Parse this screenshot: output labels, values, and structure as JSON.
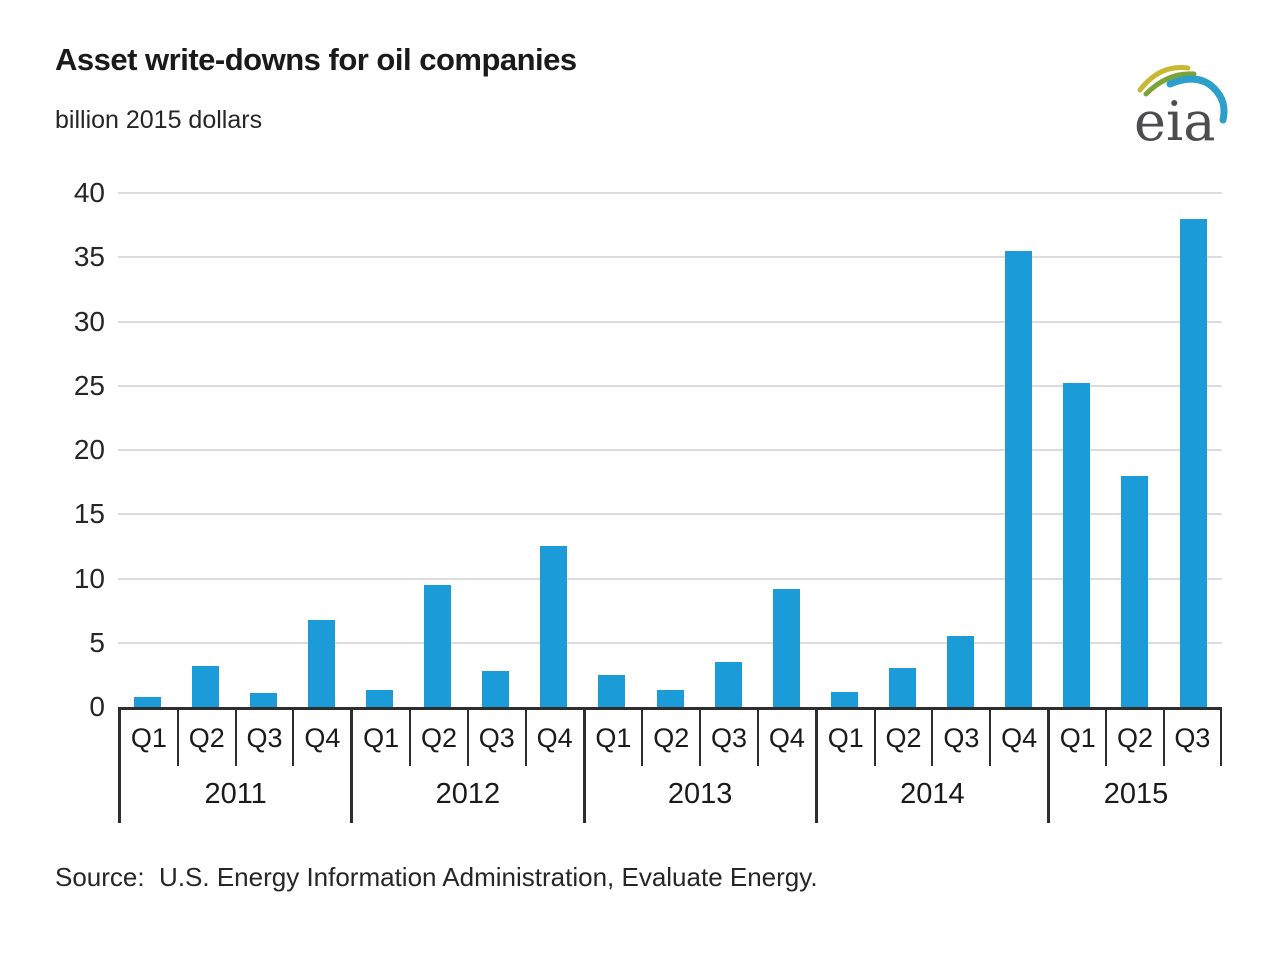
{
  "title": "Asset write-downs for oil companies",
  "subtitle": "billion 2015 dollars",
  "source": "Source:  U.S. Energy Information Administration, Evaluate Energy.",
  "logo": {
    "text": "eia"
  },
  "colors": {
    "bar": "#1b9bd8",
    "gridline": "#dcdcdc",
    "axis": "#2e2e2e",
    "text": "#1a1a1a",
    "logo_text": "#4d4d4f",
    "logo_green": "#7aa338",
    "logo_yellow": "#c8b832",
    "logo_blue": "#2d9fcc"
  },
  "chart_data": {
    "type": "bar",
    "title": "Asset write-downs for oil companies",
    "ylabel": "billion 2015 dollars",
    "xlabel": "",
    "ylim": [
      0,
      40
    ],
    "yticks": [
      0,
      5,
      10,
      15,
      20,
      25,
      30,
      35,
      40
    ],
    "grid": true,
    "legend": "none",
    "groups": [
      {
        "year": "2011",
        "quarters": [
          "Q1",
          "Q2",
          "Q3",
          "Q4"
        ],
        "values": [
          0.8,
          3.2,
          1.1,
          6.8
        ]
      },
      {
        "year": "2012",
        "quarters": [
          "Q1",
          "Q2",
          "Q3",
          "Q4"
        ],
        "values": [
          1.3,
          9.5,
          2.8,
          12.5
        ]
      },
      {
        "year": "2013",
        "quarters": [
          "Q1",
          "Q2",
          "Q3",
          "Q4"
        ],
        "values": [
          2.5,
          1.3,
          3.5,
          9.2
        ]
      },
      {
        "year": "2014",
        "quarters": [
          "Q1",
          "Q2",
          "Q3",
          "Q4"
        ],
        "values": [
          1.2,
          3.0,
          5.5,
          35.5
        ]
      },
      {
        "year": "2015",
        "quarters": [
          "Q1",
          "Q2",
          "Q3"
        ],
        "values": [
          25.2,
          18.0,
          38.0
        ]
      }
    ]
  }
}
